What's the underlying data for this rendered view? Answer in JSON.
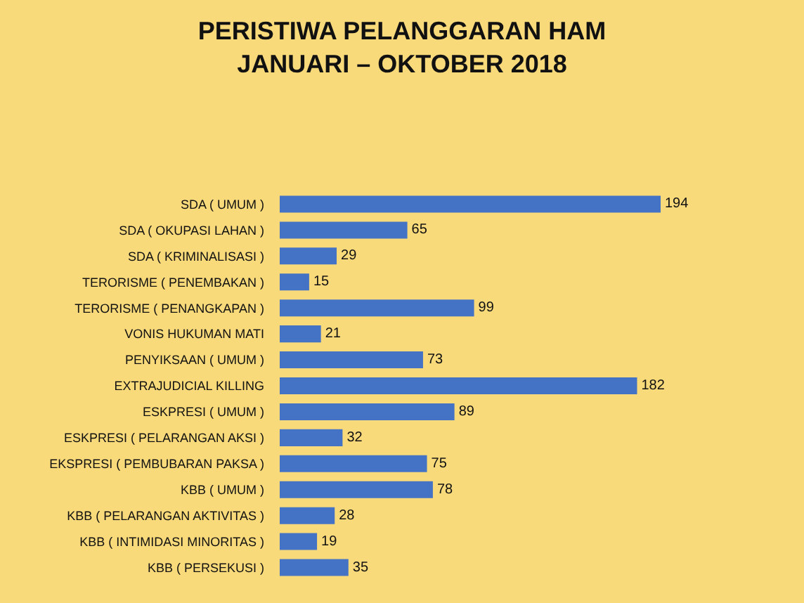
{
  "chart_data": {
    "type": "bar",
    "orientation": "horizontal",
    "title": "PERISTIWA PELANGGARAN HAM\nJANUARI – OKTOBER 2018",
    "categories": [
      "SDA ( UMUM )",
      "SDA ( OKUPASI LAHAN )",
      "SDA ( KRIMINALISASI )",
      "TERORISME ( PENEMBAKAN )",
      "TERORISME ( PENANGKAPAN )",
      "VONIS HUKUMAN MATI",
      "PENYIKSAAN ( UMUM )",
      "EXTRAJUDICIAL KILLING",
      "ESKPRESI ( UMUM )",
      "ESKPRESI ( PELARANGAN AKSI )",
      "EKSPRESI ( PEMBUBARAN PAKSA )",
      "KBB ( UMUM )",
      "KBB ( PELARANGAN AKTIVITAS )",
      "KBB ( INTIMIDASI MINORITAS )",
      "KBB ( PERSEKUSI )"
    ],
    "values": [
      194,
      65,
      29,
      15,
      99,
      21,
      73,
      182,
      89,
      32,
      75,
      78,
      28,
      19,
      35
    ],
    "color": "#4472c4",
    "data_labels": true,
    "tick_labels": "y"
  }
}
